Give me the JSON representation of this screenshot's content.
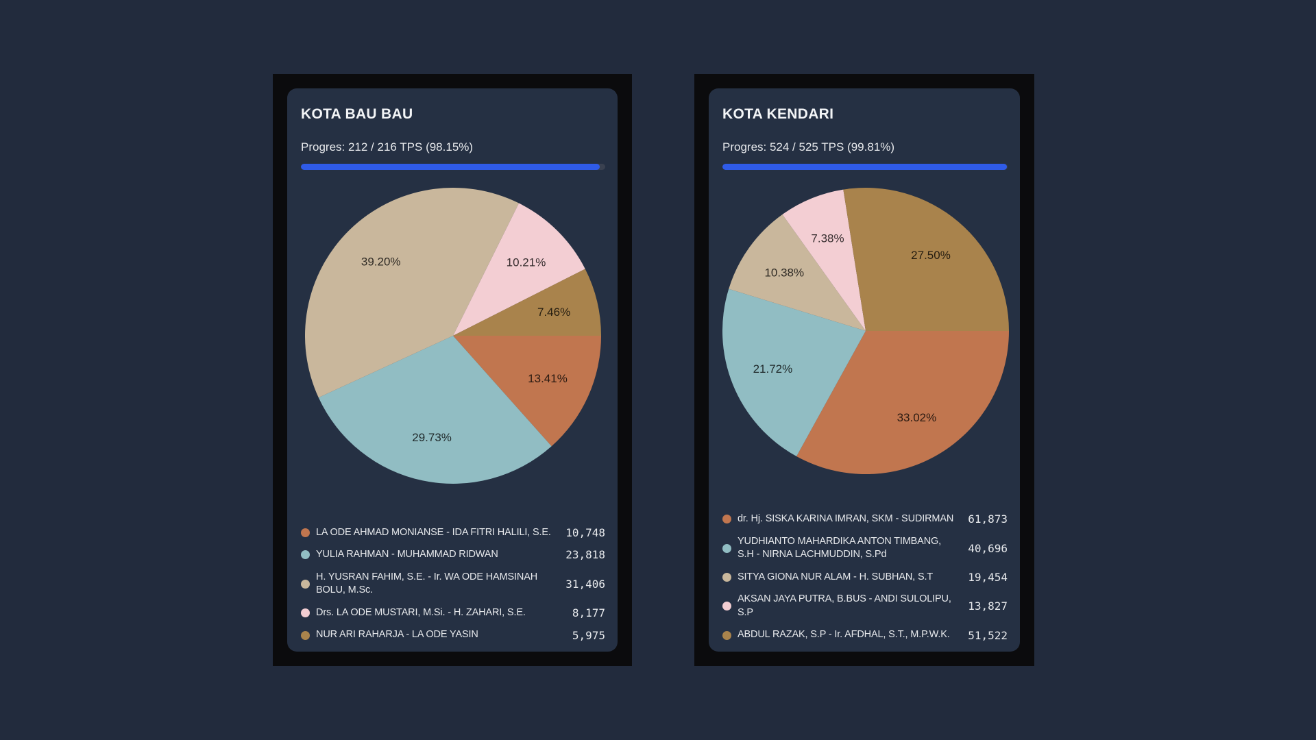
{
  "page": {
    "background": "#222b3d",
    "frame_color": "#0b0b0d",
    "card_background": "#253043",
    "accent_blue": "#2f5be8",
    "progress_track_color": "#3a4150"
  },
  "colors": {
    "terracotta": "#c1764f",
    "teal": "#91bdc3",
    "tan": "#c9b79c",
    "pink": "#f3ced3",
    "gold": "#a9834c"
  },
  "cards": [
    {
      "title": "KOTA BAU BAU",
      "progress_label": "Progres: 212 / 216 TPS (98.15%)",
      "progress_pct": 98.15,
      "candidates": [
        {
          "name": "LA ODE AHMAD MONIANSE - IDA FITRI HALILI, S.E.",
          "votes": 10748,
          "votes_label": "10,748",
          "pct_label": "13.41%",
          "color": "terracotta"
        },
        {
          "name": "YULIA RAHMAN - MUHAMMAD RIDWAN",
          "votes": 23818,
          "votes_label": "23,818",
          "pct_label": "29.73%",
          "color": "teal"
        },
        {
          "name": "H. YUSRAN FAHIM, S.E. - Ir. WA ODE HAMSINAH BOLU, M.Sc.",
          "votes": 31406,
          "votes_label": "31,406",
          "pct_label": "39.20%",
          "color": "tan"
        },
        {
          "name": "Drs. LA ODE MUSTARI, M.Si. - H. ZAHARI, S.E.",
          "votes": 8177,
          "votes_label": "8,177",
          "pct_label": "10.21%",
          "color": "pink"
        },
        {
          "name": "NUR ARI RAHARJA - LA ODE YASIN",
          "votes": 5975,
          "votes_label": "5,975",
          "pct_label": "7.46%",
          "color": "gold"
        }
      ]
    },
    {
      "title": "KOTA KENDARI",
      "progress_label": "Progres: 524 / 525 TPS (99.81%)",
      "progress_pct": 99.81,
      "candidates": [
        {
          "name": "dr. Hj. SISKA KARINA IMRAN, SKM - SUDIRMAN",
          "votes": 61873,
          "votes_label": "61,873",
          "pct_label": "33.02%",
          "color": "terracotta"
        },
        {
          "name": "YUDHIANTO MAHARDIKA ANTON TIMBANG, S.H - NIRNA LACHMUDDIN, S.Pd",
          "votes": 40696,
          "votes_label": "40,696",
          "pct_label": "21.72%",
          "color": "teal"
        },
        {
          "name": "SITYA GIONA NUR ALAM - H. SUBHAN, S.T",
          "votes": 19454,
          "votes_label": "19,454",
          "pct_label": "10.38%",
          "color": "tan"
        },
        {
          "name": "AKSAN JAYA PUTRA, B.BUS - ANDI SULOLIPU, S.P",
          "votes": 13827,
          "votes_label": "13,827",
          "pct_label": "7.38%",
          "color": "pink"
        },
        {
          "name": "ABDUL RAZAK, S.P - Ir. AFDHAL, S.T., M.P.W.K.",
          "votes": 51522,
          "votes_label": "51,522",
          "pct_label": "27.50%",
          "color": "gold"
        }
      ]
    }
  ],
  "chart_data": [
    {
      "type": "pie",
      "title": "KOTA BAU BAU",
      "subtitle": "Progres: 212 / 216 TPS (98.15%)",
      "labels": [
        "LA ODE AHMAD MONIANSE - IDA FITRI HALILI, S.E.",
        "YULIA RAHMAN - MUHAMMAD RIDWAN",
        "H. YUSRAN FAHIM, S.E. - Ir. WA ODE HAMSINAH BOLU, M.Sc.",
        "Drs. LA ODE MUSTARI, M.Si. - H. ZAHARI, S.E.",
        "NUR ARI RAHARJA - LA ODE YASIN"
      ],
      "values": [
        10748,
        23818,
        31406,
        8177,
        5975
      ],
      "percentages": [
        13.41,
        29.73,
        39.2,
        10.21,
        7.46
      ],
      "colors": [
        "#c1764f",
        "#91bdc3",
        "#c9b79c",
        "#f3ced3",
        "#a9834c"
      ],
      "start_angle": "3-oclock",
      "direction": "clockwise",
      "legend_position": "bottom"
    },
    {
      "type": "pie",
      "title": "KOTA KENDARI",
      "subtitle": "Progres: 524 / 525 TPS (99.81%)",
      "labels": [
        "dr. Hj. SISKA KARINA IMRAN, SKM - SUDIRMAN",
        "YUDHIANTO MAHARDIKA ANTON TIMBANG, S.H - NIRNA LACHMUDDIN, S.Pd",
        "SITYA GIONA NUR ALAM - H. SUBHAN, S.T",
        "AKSAN JAYA PUTRA, B.BUS - ANDI SULOLIPU, S.P",
        "ABDUL RAZAK, S.P - Ir. AFDHAL, S.T., M.P.W.K."
      ],
      "values": [
        61873,
        40696,
        19454,
        13827,
        51522
      ],
      "percentages": [
        33.02,
        21.72,
        10.38,
        7.38,
        27.5
      ],
      "colors": [
        "#c1764f",
        "#91bdc3",
        "#c9b79c",
        "#f3ced3",
        "#a9834c"
      ],
      "start_angle": "3-oclock",
      "direction": "clockwise",
      "legend_position": "bottom"
    }
  ]
}
